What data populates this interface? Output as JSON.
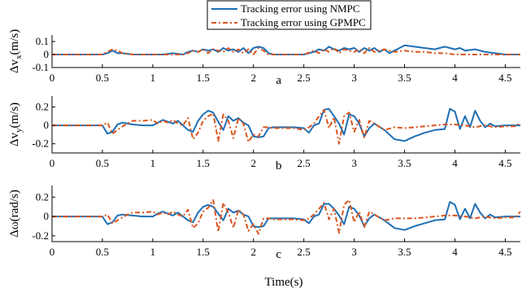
{
  "colors": {
    "nmpc": "#1f6fb5",
    "gpmpc": "#d9541d",
    "axis": "#000000"
  },
  "legend": {
    "nmpc_label": "Tracking error using NMPC",
    "gpmpc_label": "Tracking error using GPMPC"
  },
  "xlabel": "Time(s)",
  "chart_data": [
    {
      "type": "line",
      "panel_label": "a",
      "ylabel": "Δvₓ(m/s)",
      "ylabel_main": "Δv",
      "ylabel_sub": "x",
      "ylabel_unit": "(m/s)",
      "xlim": [
        0,
        4.65
      ],
      "ylim": [
        -0.1,
        0.15
      ],
      "xticks": [
        "0",
        "0.5",
        "1",
        "1.5",
        "2",
        "2.5",
        "3",
        "3.5",
        "4",
        "4.5"
      ],
      "yticks": [
        "0.1",
        "0",
        "-0.1"
      ],
      "ytick_values": [
        0.1,
        0,
        -0.1
      ],
      "series": [
        {
          "name": "Tracking error using NMPC",
          "x": [
            0,
            0.5,
            0.55,
            0.6,
            0.65,
            0.7,
            0.8,
            0.9,
            1.0,
            1.1,
            1.2,
            1.3,
            1.35,
            1.4,
            1.45,
            1.5,
            1.55,
            1.6,
            1.65,
            1.7,
            1.75,
            1.8,
            1.85,
            1.9,
            1.95,
            2.0,
            2.05,
            2.1,
            2.15,
            2.2,
            2.25,
            2.3,
            2.4,
            2.5,
            2.6,
            2.65,
            2.7,
            2.75,
            2.8,
            2.85,
            2.9,
            2.95,
            3.0,
            3.05,
            3.1,
            3.15,
            3.2,
            3.25,
            3.3,
            3.35,
            3.4,
            3.45,
            3.5,
            3.6,
            3.7,
            3.8,
            3.9,
            4.0,
            4.05,
            4.1,
            4.2,
            4.3,
            4.4,
            4.5,
            4.65
          ],
          "values": [
            0,
            0,
            0.01,
            0.03,
            0.01,
            0.01,
            0.0,
            0.0,
            0.0,
            0.0,
            0.01,
            0.0,
            0.02,
            0.03,
            0.02,
            0.04,
            0.03,
            0.04,
            0.02,
            0.05,
            0.03,
            0.04,
            0.02,
            0.05,
            0.01,
            0.05,
            0.06,
            0.05,
            0.01,
            0.0,
            0.0,
            0.0,
            0.0,
            0.0,
            0.02,
            0.04,
            0.03,
            0.06,
            0.04,
            0.03,
            0.05,
            0.04,
            0.05,
            0.02,
            0.05,
            0.03,
            0.05,
            0.02,
            0.04,
            0.01,
            0.03,
            0.05,
            0.07,
            0.06,
            0.05,
            0.04,
            0.06,
            0.04,
            0.05,
            0.03,
            0.04,
            0.02,
            0.01,
            0.0,
            0.0
          ]
        },
        {
          "name": "Tracking error using GPMPC",
          "x": [
            0,
            0.5,
            0.55,
            0.6,
            0.65,
            0.7,
            0.8,
            0.9,
            1.0,
            1.1,
            1.2,
            1.3,
            1.35,
            1.4,
            1.45,
            1.5,
            1.55,
            1.6,
            1.65,
            1.7,
            1.75,
            1.8,
            1.85,
            1.9,
            1.95,
            2.0,
            2.05,
            2.1,
            2.15,
            2.2,
            2.3,
            2.4,
            2.5,
            2.6,
            2.65,
            2.7,
            2.75,
            2.8,
            2.85,
            2.9,
            2.95,
            3.0,
            3.05,
            3.1,
            3.15,
            3.2,
            3.3,
            3.4,
            3.5,
            3.6,
            3.7,
            3.8,
            3.9,
            4.0,
            4.2,
            4.4,
            4.65
          ],
          "values": [
            0,
            0,
            0.02,
            0.04,
            0.03,
            0.01,
            0.0,
            0.0,
            0.0,
            0.0,
            0.0,
            0.0,
            0.01,
            0.03,
            0.02,
            0.04,
            0.01,
            0.04,
            0.03,
            0.02,
            0.05,
            0.02,
            0.04,
            0.01,
            0.04,
            0.0,
            0.05,
            0.03,
            0.0,
            0.0,
            0.0,
            0.0,
            0.0,
            0.03,
            0.01,
            0.04,
            0.02,
            0.05,
            0.01,
            0.04,
            0.03,
            0.02,
            0.04,
            0.01,
            0.05,
            0.02,
            0.04,
            0.02,
            0.03,
            0.02,
            0.02,
            0.01,
            0.01,
            0.0,
            0.0,
            0.0,
            0.0
          ]
        }
      ]
    },
    {
      "type": "line",
      "panel_label": "b",
      "ylabel_main": "Δv",
      "ylabel_sub": "y",
      "ylabel_unit": "(m/s)",
      "xlim": [
        0,
        4.65
      ],
      "ylim": [
        -0.3,
        0.32
      ],
      "xticks": [
        "0",
        "0.5",
        "1",
        "1.5",
        "2",
        "2.5",
        "3",
        "3.5",
        "4",
        "4.5"
      ],
      "yticks": [
        "0.2",
        "0",
        "-0.2"
      ],
      "ytick_values": [
        0.2,
        0,
        -0.2
      ],
      "series": [
        {
          "name": "Tracking error using NMPC",
          "x": [
            0,
            0.5,
            0.55,
            0.6,
            0.65,
            0.7,
            0.8,
            0.9,
            1.0,
            1.05,
            1.1,
            1.15,
            1.2,
            1.25,
            1.3,
            1.35,
            1.4,
            1.45,
            1.5,
            1.55,
            1.6,
            1.65,
            1.7,
            1.75,
            1.8,
            1.85,
            1.9,
            1.95,
            2.0,
            2.05,
            2.1,
            2.15,
            2.2,
            2.3,
            2.4,
            2.5,
            2.55,
            2.6,
            2.65,
            2.7,
            2.75,
            2.8,
            2.85,
            2.9,
            2.95,
            3.0,
            3.05,
            3.1,
            3.15,
            3.2,
            3.3,
            3.4,
            3.5,
            3.6,
            3.7,
            3.8,
            3.9,
            3.95,
            4.0,
            4.05,
            4.1,
            4.15,
            4.2,
            4.25,
            4.3,
            4.35,
            4.4,
            4.5,
            4.65
          ],
          "values": [
            0,
            0,
            -0.09,
            -0.07,
            0.01,
            0.03,
            0.01,
            0.0,
            0.0,
            0.03,
            0.06,
            0.04,
            0.02,
            0.05,
            0.0,
            -0.05,
            -0.07,
            0.05,
            0.12,
            0.16,
            0.14,
            0.04,
            -0.05,
            0.1,
            0.05,
            0.08,
            0.03,
            0.0,
            -0.12,
            -0.13,
            -0.12,
            -0.03,
            -0.02,
            -0.02,
            -0.02,
            -0.03,
            -0.08,
            0.0,
            0.02,
            0.17,
            0.18,
            0.1,
            0.02,
            -0.1,
            0.12,
            0.1,
            0.02,
            -0.12,
            -0.03,
            0.02,
            -0.05,
            -0.15,
            -0.17,
            -0.12,
            -0.08,
            -0.05,
            -0.04,
            0.18,
            0.15,
            -0.04,
            0.1,
            -0.02,
            0.16,
            0.05,
            -0.02,
            0.02,
            -0.01,
            0.0,
            0.0
          ]
        },
        {
          "name": "Tracking error using GPMPC",
          "x": [
            0,
            0.5,
            0.55,
            0.6,
            0.65,
            0.7,
            0.75,
            0.8,
            0.9,
            1.0,
            1.05,
            1.1,
            1.15,
            1.2,
            1.25,
            1.3,
            1.35,
            1.4,
            1.45,
            1.5,
            1.55,
            1.6,
            1.65,
            1.7,
            1.75,
            1.8,
            1.85,
            1.9,
            1.95,
            2.0,
            2.05,
            2.1,
            2.15,
            2.2,
            2.3,
            2.4,
            2.5,
            2.55,
            2.6,
            2.65,
            2.7,
            2.75,
            2.8,
            2.85,
            2.9,
            2.95,
            3.0,
            3.05,
            3.1,
            3.15,
            3.2,
            3.3,
            3.4,
            3.5,
            3.6,
            3.7,
            3.8,
            3.9,
            4.0,
            4.1,
            4.2,
            4.3,
            4.4,
            4.5,
            4.6,
            4.65
          ],
          "values": [
            0,
            0,
            0.03,
            -0.09,
            -0.05,
            -0.01,
            0.02,
            0.05,
            0.05,
            0.06,
            0.02,
            0.05,
            0.03,
            0.06,
            0.02,
            0.0,
            0.08,
            -0.15,
            -0.08,
            0.05,
            0.1,
            0.13,
            -0.17,
            0.12,
            0.05,
            -0.14,
            0.08,
            0.02,
            -0.18,
            -0.1,
            -0.12,
            -0.02,
            -0.02,
            -0.03,
            -0.03,
            -0.03,
            -0.05,
            -0.02,
            0.02,
            0.1,
            0.17,
            -0.03,
            0.09,
            -0.2,
            0.1,
            0.14,
            -0.07,
            0.06,
            -0.13,
            0.05,
            0.02,
            -0.05,
            -0.02,
            -0.03,
            -0.02,
            -0.01,
            0.0,
            0.01,
            0.01,
            0.0,
            -0.02,
            0.0,
            -0.02,
            -0.01,
            -0.01,
            0.03
          ]
        }
      ]
    },
    {
      "type": "line",
      "panel_label": "c",
      "ylabel_main": "Δω",
      "ylabel_sub": "",
      "ylabel_unit": "(rad/s)",
      "xlim": [
        0,
        4.65
      ],
      "ylim": [
        -0.26,
        0.32
      ],
      "xticks": [
        "0",
        "0.5",
        "1",
        "1.5",
        "2",
        "2.5",
        "3",
        "3.5",
        "4",
        "4.5"
      ],
      "yticks": [
        "0.2",
        "0",
        "-0.2"
      ],
      "ytick_values": [
        0.2,
        0,
        -0.2
      ],
      "series": [
        {
          "name": "Tracking error using NMPC",
          "x": [
            0,
            0.5,
            0.55,
            0.6,
            0.65,
            0.7,
            0.8,
            0.9,
            1.0,
            1.05,
            1.1,
            1.15,
            1.2,
            1.25,
            1.3,
            1.35,
            1.4,
            1.45,
            1.5,
            1.55,
            1.6,
            1.65,
            1.7,
            1.75,
            1.8,
            1.85,
            1.9,
            1.95,
            2.0,
            2.05,
            2.1,
            2.15,
            2.2,
            2.3,
            2.4,
            2.5,
            2.55,
            2.6,
            2.65,
            2.7,
            2.75,
            2.8,
            2.85,
            2.9,
            2.95,
            3.0,
            3.05,
            3.1,
            3.15,
            3.2,
            3.3,
            3.4,
            3.5,
            3.6,
            3.7,
            3.8,
            3.9,
            3.95,
            4.0,
            4.05,
            4.1,
            4.15,
            4.2,
            4.25,
            4.3,
            4.35,
            4.4,
            4.5,
            4.65
          ],
          "values": [
            0,
            0,
            -0.08,
            -0.06,
            0.01,
            0.02,
            0.01,
            0.0,
            0.0,
            0.03,
            0.05,
            0.03,
            0.01,
            0.04,
            0.0,
            -0.04,
            -0.06,
            0.04,
            0.1,
            0.12,
            0.1,
            0.03,
            -0.04,
            0.08,
            0.04,
            0.06,
            0.02,
            0.0,
            -0.1,
            -0.11,
            -0.1,
            -0.02,
            -0.02,
            -0.02,
            -0.02,
            -0.03,
            -0.07,
            0.0,
            0.02,
            0.13,
            0.13,
            0.08,
            0.01,
            -0.08,
            0.1,
            0.08,
            0.01,
            -0.1,
            -0.02,
            0.02,
            -0.04,
            -0.12,
            -0.14,
            -0.1,
            -0.07,
            -0.04,
            -0.03,
            0.15,
            0.12,
            -0.03,
            0.08,
            -0.02,
            0.13,
            0.04,
            -0.02,
            0.02,
            -0.01,
            0.0,
            0.0
          ]
        },
        {
          "name": "Tracking error using GPMPC",
          "x": [
            0,
            0.5,
            0.55,
            0.6,
            0.65,
            0.7,
            0.75,
            0.8,
            0.9,
            1.0,
            1.05,
            1.1,
            1.15,
            1.2,
            1.25,
            1.3,
            1.35,
            1.4,
            1.45,
            1.5,
            1.55,
            1.6,
            1.65,
            1.7,
            1.75,
            1.8,
            1.85,
            1.9,
            1.95,
            2.0,
            2.05,
            2.1,
            2.15,
            2.2,
            2.3,
            2.4,
            2.5,
            2.55,
            2.6,
            2.65,
            2.7,
            2.75,
            2.8,
            2.85,
            2.9,
            2.95,
            3.0,
            3.05,
            3.1,
            3.15,
            3.2,
            3.3,
            3.4,
            3.5,
            3.6,
            3.7,
            3.8,
            3.9,
            4.0,
            4.1,
            4.2,
            4.3,
            4.4,
            4.5,
            4.6,
            4.65
          ],
          "values": [
            0,
            0,
            0.02,
            -0.07,
            -0.04,
            -0.01,
            0.02,
            0.04,
            0.04,
            0.05,
            0.02,
            0.04,
            0.02,
            0.05,
            0.02,
            0.0,
            0.07,
            -0.12,
            -0.07,
            0.05,
            0.09,
            0.17,
            -0.16,
            0.14,
            0.04,
            -0.12,
            0.07,
            0.02,
            -0.15,
            -0.08,
            -0.18,
            -0.02,
            -0.02,
            -0.03,
            -0.03,
            -0.03,
            -0.04,
            -0.02,
            0.02,
            0.08,
            0.14,
            -0.03,
            0.08,
            -0.17,
            0.12,
            0.17,
            -0.06,
            0.05,
            -0.11,
            0.05,
            0.02,
            -0.04,
            -0.02,
            -0.02,
            -0.02,
            -0.01,
            0.0,
            0.01,
            0.01,
            0.0,
            -0.02,
            0.0,
            -0.02,
            -0.01,
            -0.01,
            0.05
          ]
        }
      ]
    }
  ]
}
